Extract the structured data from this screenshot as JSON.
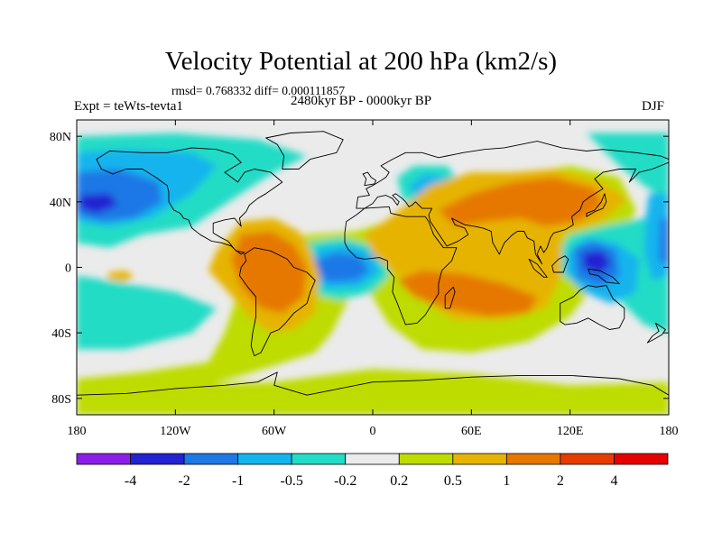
{
  "title": "Velocity Potential at 200 hPa (km2/s)",
  "stats_line": "rmsd= 0.768332 diff= 0.000111857",
  "experiment": "Expt = teWts-tevta1",
  "period": "2480kyr BP - 0000kyr BP",
  "season": "DJF",
  "chart_data": {
    "type": "heatmap",
    "title": "Velocity Potential at 200 hPa (km2/s)",
    "projection": "cylindrical-equidistant",
    "xlim": [
      -180,
      180
    ],
    "ylim": [
      -90,
      90
    ],
    "x_ticks": [
      {
        "value": -180,
        "label": "180"
      },
      {
        "value": -120,
        "label": "120W"
      },
      {
        "value": -60,
        "label": "60W"
      },
      {
        "value": 0,
        "label": "0"
      },
      {
        "value": 60,
        "label": "60E"
      },
      {
        "value": 120,
        "label": "120E"
      },
      {
        "value": 180,
        "label": "180"
      }
    ],
    "y_ticks": [
      {
        "value": 80,
        "label": "80N"
      },
      {
        "value": 40,
        "label": "40N"
      },
      {
        "value": 0,
        "label": "0"
      },
      {
        "value": -40,
        "label": "40S"
      },
      {
        "value": -80,
        "label": "80S"
      }
    ],
    "levels": [
      -4,
      -2,
      -1,
      -0.5,
      -0.2,
      0.2,
      0.5,
      1,
      2,
      4
    ],
    "level_labels": [
      "-4",
      "-2",
      "-1",
      "-0.5",
      "-0.2",
      "0.2",
      "0.5",
      "1",
      "2",
      "4"
    ],
    "colors": [
      "#8c1ee8",
      "#2323d2",
      "#1e78e6",
      "#14b4ee",
      "#22dcc6",
      "#ebebeb",
      "#bedc00",
      "#e6b400",
      "#e67800",
      "#e63c00",
      "#e60000"
    ],
    "features": [
      {
        "name": "N Pacific low",
        "sign": "negative",
        "lon": -160,
        "lat": 38,
        "peak": -2
      },
      {
        "name": "Equatorial Atlantic low",
        "sign": "negative",
        "lon": -20,
        "lat": 0,
        "peak": -1
      },
      {
        "name": "Maritime Continent low",
        "sign": "negative",
        "lon": 130,
        "lat": 5,
        "peak": -2
      },
      {
        "name": "Eastern Europe low",
        "sign": "negative",
        "lon": 35,
        "lat": 45,
        "peak": -0.5
      },
      {
        "name": "South America high",
        "sign": "positive",
        "lon": -65,
        "lat": -10,
        "peak": 2
      },
      {
        "name": "Indian Ocean high",
        "sign": "positive",
        "lon": 70,
        "lat": -10,
        "peak": 2
      },
      {
        "name": "Asia high",
        "sign": "positive",
        "lon": 95,
        "lat": 35,
        "peak": 2
      },
      {
        "name": "Southern Ocean high",
        "sign": "positive",
        "lon": 20,
        "lat": -50,
        "peak": 0.5
      }
    ]
  }
}
